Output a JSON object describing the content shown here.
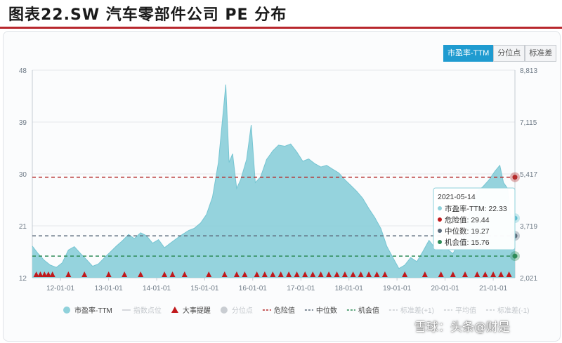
{
  "title": "图表22.SW 汽车零部件公司 PE 分布",
  "tabs": [
    {
      "label": "市盈率-TTM",
      "active": true
    },
    {
      "label": "分位点",
      "active": false
    },
    {
      "label": "标准差",
      "active": false
    }
  ],
  "watermark": "雪球：头条@财是",
  "colors": {
    "area_fill": "#8fd1db",
    "area_stroke": "#76c5d2",
    "danger": "#b52a2a",
    "median": "#5a6a7a",
    "opportunity": "#2e8b57",
    "event": "#c0191c",
    "accent_tab": "#1f9bd0"
  },
  "chart_data": {
    "type": "area",
    "y_left": {
      "min": 12,
      "max": 48,
      "ticks": [
        "48",
        "39",
        "30",
        "21",
        "12"
      ]
    },
    "y_right": {
      "ticks": [
        "8,813",
        "7,115",
        "5,417",
        "3,719",
        "2,021"
      ]
    },
    "x_ticks": [
      "12-01-01",
      "13-01-01",
      "14-01-01",
      "15-01-01",
      "16-01-01",
      "17-01-01",
      "18-01-01",
      "19-01-01",
      "20-01-01",
      "21-01-01"
    ],
    "x_range": [
      "2011-06-01",
      "2021-06-15"
    ],
    "series": [
      {
        "name": "市盈率-TTM",
        "points": [
          [
            "2011-06-01",
            17.5
          ],
          [
            "2011-07-15",
            16.2
          ],
          [
            "2011-09-01",
            15.0
          ],
          [
            "2011-10-15",
            14.2
          ],
          [
            "2011-12-01",
            13.8
          ],
          [
            "2012-01-15",
            14.6
          ],
          [
            "2012-03-01",
            16.8
          ],
          [
            "2012-04-15",
            17.4
          ],
          [
            "2012-06-01",
            16.2
          ],
          [
            "2012-07-15",
            15.2
          ],
          [
            "2012-09-01",
            14.0
          ],
          [
            "2012-10-15",
            14.4
          ],
          [
            "2012-12-01",
            15.5
          ],
          [
            "2013-01-15",
            16.5
          ],
          [
            "2013-03-01",
            17.5
          ],
          [
            "2013-04-15",
            18.4
          ],
          [
            "2013-06-01",
            19.5
          ],
          [
            "2013-07-15",
            18.8
          ],
          [
            "2013-09-01",
            19.8
          ],
          [
            "2013-10-15",
            19.3
          ],
          [
            "2013-12-01",
            18.0
          ],
          [
            "2014-01-15",
            18.6
          ],
          [
            "2014-03-01",
            17.2
          ],
          [
            "2014-04-15",
            18.0
          ],
          [
            "2014-06-01",
            18.8
          ],
          [
            "2014-07-15",
            19.5
          ],
          [
            "2014-09-01",
            20.2
          ],
          [
            "2014-10-15",
            20.6
          ],
          [
            "2014-12-01",
            21.5
          ],
          [
            "2015-01-15",
            23.0
          ],
          [
            "2015-03-01",
            26.0
          ],
          [
            "2015-04-15",
            32.0
          ],
          [
            "2015-05-10",
            38.0
          ],
          [
            "2015-06-10",
            45.5
          ],
          [
            "2015-07-05",
            32.0
          ],
          [
            "2015-08-01",
            33.5
          ],
          [
            "2015-09-01",
            27.5
          ],
          [
            "2015-10-01",
            29.0
          ],
          [
            "2015-11-15",
            32.5
          ],
          [
            "2015-12-20",
            38.5
          ],
          [
            "2016-01-20",
            28.5
          ],
          [
            "2016-03-01",
            29.5
          ],
          [
            "2016-04-15",
            32.5
          ],
          [
            "2016-06-01",
            34.0
          ],
          [
            "2016-07-15",
            35.0
          ],
          [
            "2016-09-01",
            34.8
          ],
          [
            "2016-10-15",
            35.2
          ],
          [
            "2016-12-01",
            33.8
          ],
          [
            "2017-01-15",
            32.2
          ],
          [
            "2017-03-01",
            32.6
          ],
          [
            "2017-04-15",
            31.8
          ],
          [
            "2017-06-01",
            31.2
          ],
          [
            "2017-07-15",
            31.5
          ],
          [
            "2017-09-01",
            30.8
          ],
          [
            "2017-10-15",
            30.2
          ],
          [
            "2017-12-01",
            29.0
          ],
          [
            "2018-01-15",
            28.0
          ],
          [
            "2018-03-01",
            27.0
          ],
          [
            "2018-04-15",
            25.8
          ],
          [
            "2018-06-01",
            24.0
          ],
          [
            "2018-07-15",
            22.5
          ],
          [
            "2018-09-01",
            20.5
          ],
          [
            "2018-10-15",
            17.5
          ],
          [
            "2018-12-01",
            15.5
          ],
          [
            "2019-01-15",
            13.6
          ],
          [
            "2019-03-01",
            14.2
          ],
          [
            "2019-04-15",
            15.5
          ],
          [
            "2019-06-01",
            14.8
          ],
          [
            "2019-07-15",
            16.5
          ],
          [
            "2019-09-01",
            18.5
          ],
          [
            "2019-10-15",
            17.2
          ],
          [
            "2019-12-01",
            16.8
          ],
          [
            "2020-01-15",
            17.0
          ],
          [
            "2020-03-01",
            16.2
          ],
          [
            "2020-04-15",
            18.0
          ],
          [
            "2020-06-01",
            20.0
          ],
          [
            "2020-07-15",
            24.0
          ],
          [
            "2020-09-01",
            27.0
          ],
          [
            "2020-10-15",
            27.8
          ],
          [
            "2020-12-01",
            29.0
          ],
          [
            "2021-01-15",
            30.5
          ],
          [
            "2021-02-20",
            31.5
          ],
          [
            "2021-03-20",
            28.5
          ],
          [
            "2021-04-20",
            27.5
          ],
          [
            "2021-05-14",
            22.33
          ],
          [
            "2021-06-15",
            22.33
          ]
        ]
      }
    ],
    "reference_lines": [
      {
        "name": "危险值",
        "value": 29.44,
        "color": "#b52a2a"
      },
      {
        "name": "中位数",
        "value": 19.27,
        "color": "#5a6a7a"
      },
      {
        "name": "机会值",
        "value": 15.76,
        "color": "#2e8b57"
      }
    ],
    "event_markers": [
      "2011-07-01",
      "2011-08-01",
      "2011-09-01",
      "2011-10-01",
      "2011-11-01",
      "2012-03-01",
      "2012-07-01",
      "2013-01-01",
      "2013-05-01",
      "2013-09-01",
      "2014-03-01",
      "2014-05-01",
      "2014-08-01",
      "2015-02-01",
      "2015-06-01",
      "2015-09-01",
      "2015-11-01",
      "2016-02-01",
      "2016-04-01",
      "2016-06-01",
      "2016-08-01",
      "2016-10-01",
      "2016-12-01",
      "2017-02-01",
      "2017-04-01",
      "2017-06-01",
      "2017-08-01",
      "2017-10-01",
      "2017-12-01",
      "2018-02-01",
      "2018-04-01",
      "2018-06-01",
      "2018-08-01",
      "2018-10-01",
      "2019-03-01",
      "2019-08-01",
      "2019-12-01",
      "2020-03-01",
      "2020-06-01",
      "2020-09-01",
      "2020-11-01",
      "2021-01-01",
      "2021-03-01",
      "2021-05-01"
    ],
    "tooltip": {
      "date": "2021-05-14",
      "rows": [
        {
          "label": "市盈率-TTM",
          "value": "22.33",
          "color": "#8fd1db"
        },
        {
          "label": "危险值",
          "value": "29.44",
          "color": "#c0191c"
        },
        {
          "label": "中位数",
          "value": "19.27",
          "color": "#5a6a7a"
        },
        {
          "label": "机会值",
          "value": "15.76",
          "color": "#2e8b57"
        }
      ]
    },
    "legend": [
      {
        "label": "市盈率-TTM",
        "symbol": "dot",
        "color": "#8fd1db",
        "muted": false
      },
      {
        "label": "指数点位",
        "symbol": "line",
        "color": "#c9cdd2",
        "muted": true
      },
      {
        "label": "大事提醒",
        "symbol": "triangle",
        "color": "#c0191c",
        "muted": false
      },
      {
        "label": "分位点",
        "symbol": "dot",
        "color": "#c9cdd2",
        "muted": true
      },
      {
        "label": "危险值",
        "symbol": "dash",
        "color": "#b52a2a",
        "muted": false
      },
      {
        "label": "中位数",
        "symbol": "dash",
        "color": "#5a6a7a",
        "muted": false
      },
      {
        "label": "机会值",
        "symbol": "dash",
        "color": "#2e8b57",
        "muted": false
      },
      {
        "label": "标准差(+1)",
        "symbol": "dash",
        "color": "#c9cdd2",
        "muted": true
      },
      {
        "label": "平均值",
        "symbol": "dash",
        "color": "#c9cdd2",
        "muted": true
      },
      {
        "label": "标准差(-1)",
        "symbol": "dash",
        "color": "#c9cdd2",
        "muted": true
      }
    ]
  }
}
